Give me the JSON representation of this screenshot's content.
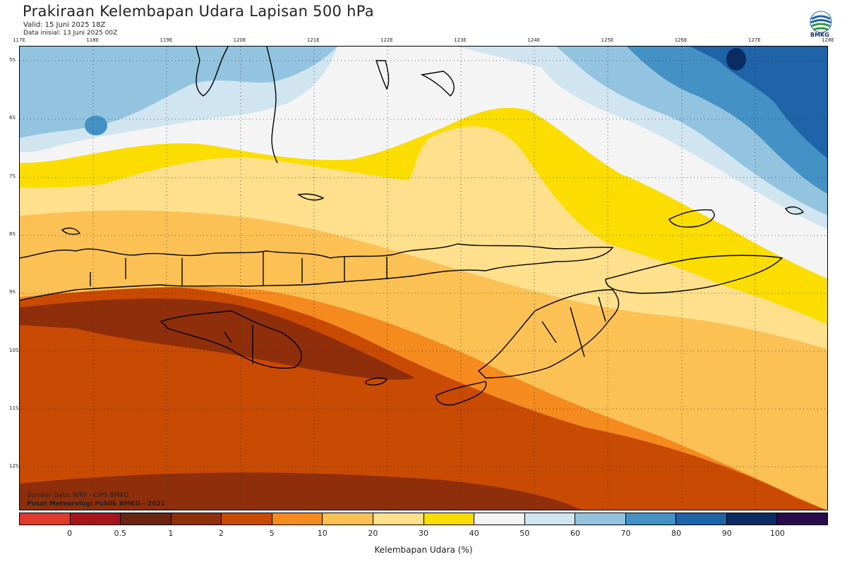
{
  "header": {
    "title": "Prakiraan Kelembapan Udara Lapisan 500 hPa",
    "valid": "Valid: 15 Juni 2025 18Z",
    "init": "Data inisial: 13 Juni 2025 00Z"
  },
  "logo": {
    "text": "BMKG",
    "icon": "bmkg-logo-icon"
  },
  "axes": {
    "lon_labels": [
      "117E",
      "118E",
      "119E",
      "120E",
      "121E",
      "122E",
      "123E",
      "124E",
      "125E",
      "126E",
      "127E",
      "128E"
    ],
    "lat_labels": [
      "5S",
      "6S",
      "7S",
      "8S",
      "9S",
      "10S",
      "11S",
      "12S"
    ]
  },
  "credits": {
    "source": "Sumber Data: WRF - CIPS BMKG",
    "org": "Pusat Meteorologi Publik BMKG - 2021"
  },
  "colorbar": {
    "title": "Kelembapan Udara (%)",
    "ticks": [
      "0",
      "0.5",
      "1",
      "2",
      "5",
      "10",
      "20",
      "30",
      "40",
      "50",
      "60",
      "70",
      "80",
      "90",
      "100"
    ],
    "colors": [
      "#e03b2a",
      "#a8141b",
      "#6b2410",
      "#8f2e0a",
      "#c94a03",
      "#f58a1e",
      "#fcc154",
      "#fee08d",
      "#fbdd00",
      "#f4f4f4",
      "#d1e5f1",
      "#93c4df",
      "#4491c5",
      "#1f63a9",
      "#0b2c63",
      "#2a0a4a"
    ]
  },
  "map_colors": {
    "ocean_dark_brown": "#8f2e0a",
    "brown": "#c94a03",
    "orange": "#f58a1e",
    "light_orange": "#fcc154",
    "pale_yellow": "#fee08d",
    "yellow": "#fbdd00",
    "white": "#f4f4f4",
    "pale_blue": "#d1e5f1",
    "light_blue": "#93c4df",
    "blue": "#4491c5",
    "dark_blue": "#1f63a9",
    "navy": "#0b2c63"
  }
}
